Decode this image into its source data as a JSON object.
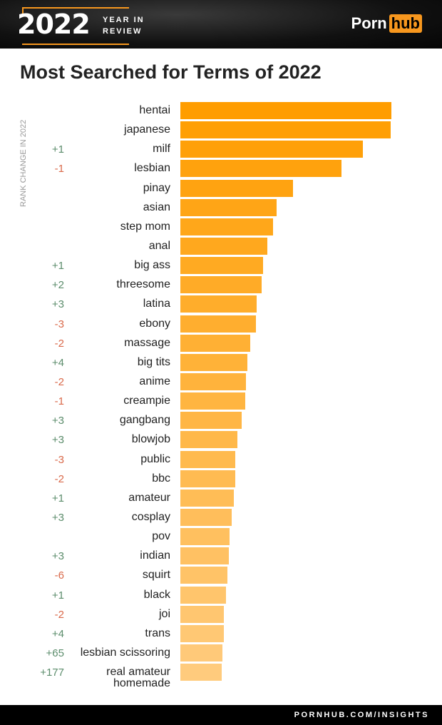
{
  "header": {
    "year": "2022",
    "year_in_review": [
      "YEAR IN",
      "REVIEW"
    ],
    "logo": [
      "Porn",
      "hub"
    ]
  },
  "footer": {
    "url": "PORNHUB.COM/INSIGHTS"
  },
  "colors": {
    "accent": "#f7971e",
    "bar_top": "#ff9d00",
    "bar_bottom": "#ffcb7d",
    "positive": "#5b8c6b",
    "negative": "#d9694a"
  },
  "chart_data": {
    "type": "bar",
    "orientation": "horizontal",
    "title": "Most Searched for Terms of 2022",
    "side_label": "RANK CHANGE IN 2022",
    "value_note": "relative bar length, top term = 100",
    "categories": [
      "hentai",
      "japanese",
      "milf",
      "lesbian",
      "pinay",
      "asian",
      "step mom",
      "anal",
      "big ass",
      "threesome",
      "latina",
      "ebony",
      "massage",
      "big tits",
      "anime",
      "creampie",
      "gangbang",
      "blowjob",
      "public",
      "bbc",
      "amateur",
      "cosplay",
      "pov",
      "indian",
      "squirt",
      "black",
      "joi",
      "trans",
      "lesbian scissoring",
      "real amateur homemade"
    ],
    "values": [
      100,
      99.7,
      86.5,
      76.4,
      53.4,
      45.6,
      43.9,
      41.2,
      39.2,
      38.5,
      36.1,
      35.8,
      33.1,
      31.8,
      31.1,
      30.7,
      29.1,
      27.0,
      26.0,
      26.0,
      25.3,
      24.3,
      23.3,
      23.0,
      22.3,
      21.6,
      20.6,
      20.6,
      19.9,
      19.6
    ],
    "rank_change": [
      "",
      "",
      "+1",
      "-1",
      "",
      "",
      "",
      "",
      "+1",
      "+2",
      "+3",
      "-3",
      "-2",
      "+4",
      "-2",
      "-1",
      "+3",
      "+3",
      "-3",
      "-2",
      "+1",
      "+3",
      "",
      "+3",
      "-6",
      "+1",
      "-2",
      "+4",
      "+65",
      "+177"
    ]
  }
}
